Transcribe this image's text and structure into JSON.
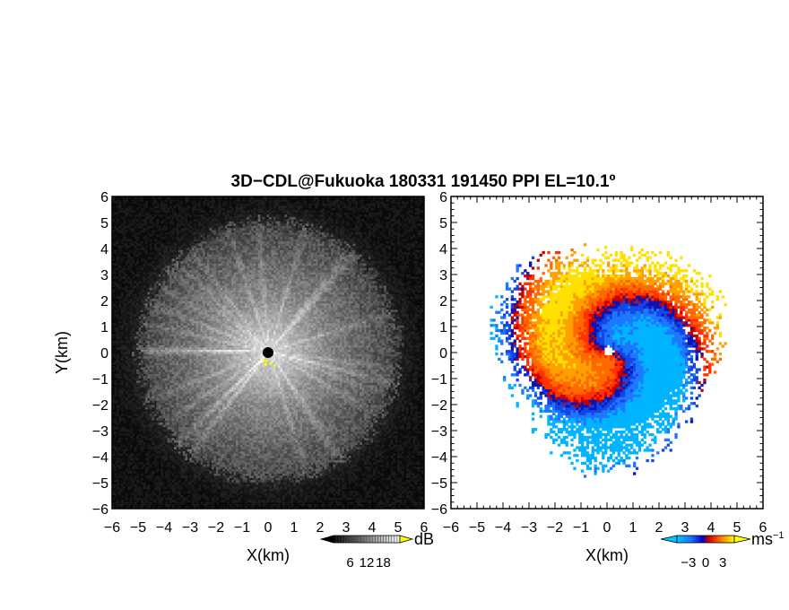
{
  "figure": {
    "title": "3D−CDL@Fukuoka 180331 191450 PPI EL=10.1º"
  },
  "chart_data": [
    {
      "type": "heatmap",
      "variable": "reflectivity",
      "xlabel": "X(km)",
      "ylabel": "Y(km)",
      "xlim": [
        -6,
        6
      ],
      "ylim": [
        -6,
        6
      ],
      "x_ticks": [
        "−6",
        "−5",
        "−4",
        "−3",
        "−2",
        "−1",
        "0",
        "1",
        "2",
        "3",
        "4",
        "5",
        "6"
      ],
      "y_ticks": [
        "6",
        "5",
        "4",
        "3",
        "2",
        "1",
        "0",
        "−1",
        "−2",
        "−3",
        "−4",
        "−5",
        "−6"
      ],
      "colormap": "grayscale",
      "colorbar": {
        "unit": "dB",
        "ticks": [
          "6",
          "12",
          "18"
        ],
        "range": [
          0,
          24
        ],
        "low_color": "#000000",
        "high_color": "#ffff00"
      },
      "echo_radius_km": 4.7,
      "grid": false
    },
    {
      "type": "heatmap",
      "variable": "doppler_velocity",
      "xlabel": "X(km)",
      "ylabel": "",
      "xlim": [
        -6,
        6
      ],
      "ylim": [
        -6,
        6
      ],
      "x_ticks": [
        "−6",
        "−5",
        "−4",
        "−3",
        "−2",
        "−1",
        "0",
        "1",
        "2",
        "3",
        "4",
        "5",
        "6"
      ],
      "y_ticks": [
        "6",
        "5",
        "4",
        "3",
        "2",
        "1",
        "0",
        "−1",
        "−2",
        "−3",
        "−4",
        "−5",
        "−6"
      ],
      "colormap": "cyan-blue-red-orange-yellow",
      "colorbar": {
        "unit": "ms",
        "unit_exponent": "−1",
        "ticks": [
          "−3",
          "0",
          "3"
        ],
        "range": [
          -5,
          5
        ],
        "low_color": "#00c0ff",
        "high_color": "#ffff00"
      },
      "echo_radius_km": 4.8,
      "grid": false
    }
  ]
}
